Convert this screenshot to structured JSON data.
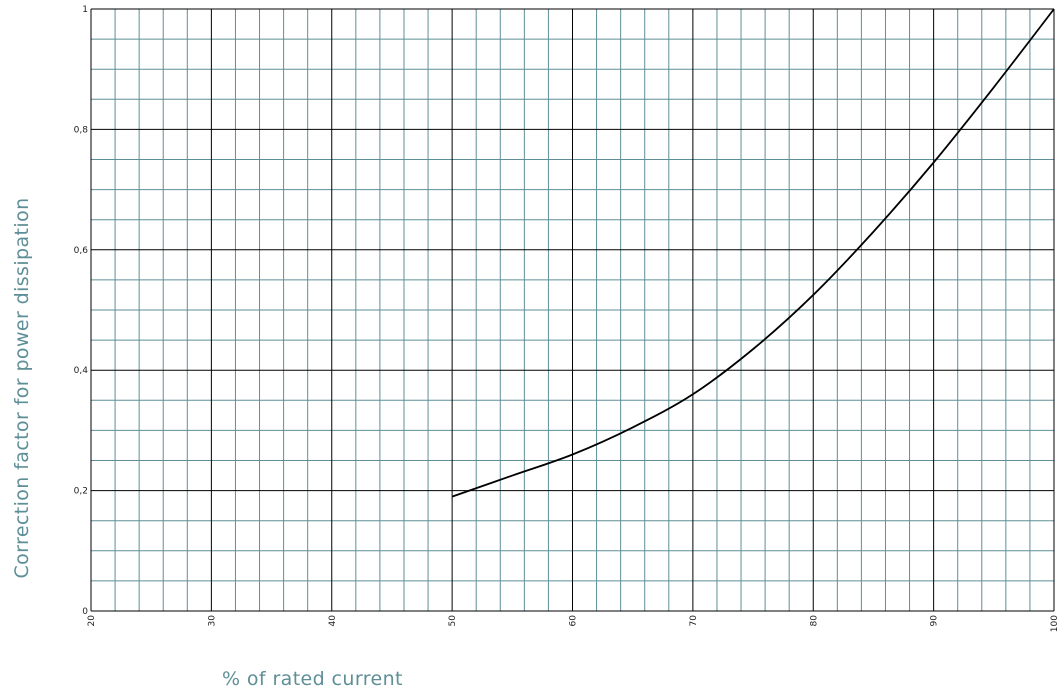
{
  "chart_data": {
    "type": "line",
    "xlabel": "% of rated current",
    "ylabel": "Correction factor for power dissipation",
    "xlim": [
      20,
      100
    ],
    "ylim": [
      0,
      1
    ],
    "x_ticks": [
      "20",
      "30",
      "40",
      "50",
      "60",
      "70",
      "80",
      "90",
      "100"
    ],
    "y_ticks": [
      "0",
      "0,2",
      "0,4",
      "0,6",
      "0,8",
      "1"
    ],
    "grid": true,
    "legend": "none",
    "series": [
      {
        "x": [
          50,
          55,
          60,
          65,
          70,
          75,
          80,
          85,
          90,
          95,
          100
        ],
        "y": [
          0.19,
          0.225,
          0.26,
          0.305,
          0.36,
          0.435,
          0.525,
          0.63,
          0.745,
          0.87,
          1.0
        ]
      }
    ],
    "colors": {
      "minor_grid": "#5e8f97",
      "major_grid": "#000000",
      "line": "#000000",
      "axis_title": "#5e8f97"
    }
  }
}
